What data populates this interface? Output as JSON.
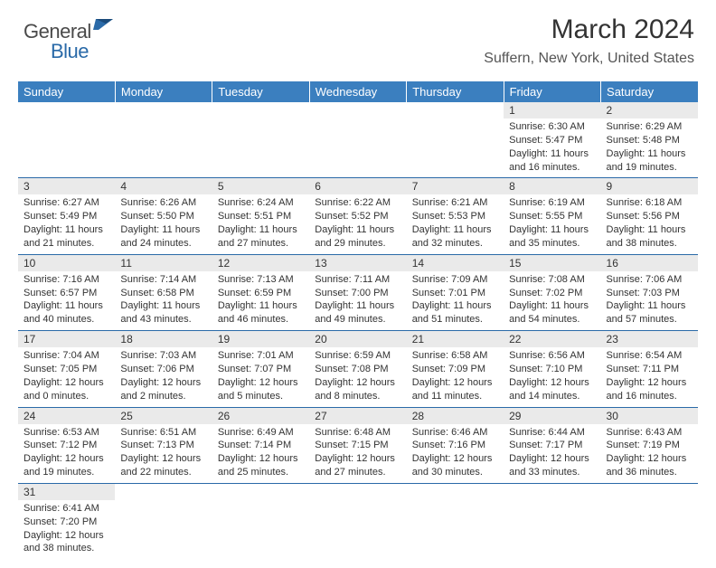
{
  "brand": {
    "part1": "General",
    "part2": "Blue"
  },
  "title": {
    "month": "March 2024",
    "location": "Suffern, New York, United States"
  },
  "colors": {
    "header_bg": "#3b7fbf",
    "header_text": "#ffffff",
    "daynum_bg": "#eaeaea",
    "border": "#2a6aa8",
    "text": "#333333",
    "brand_gray": "#4a4a4a",
    "brand_blue": "#2a6aa8"
  },
  "weekdays": [
    "Sunday",
    "Monday",
    "Tuesday",
    "Wednesday",
    "Thursday",
    "Friday",
    "Saturday"
  ],
  "weeks": [
    [
      null,
      null,
      null,
      null,
      null,
      {
        "n": "1",
        "sr": "Sunrise: 6:30 AM",
        "ss": "Sunset: 5:47 PM",
        "dl1": "Daylight: 11 hours",
        "dl2": "and 16 minutes."
      },
      {
        "n": "2",
        "sr": "Sunrise: 6:29 AM",
        "ss": "Sunset: 5:48 PM",
        "dl1": "Daylight: 11 hours",
        "dl2": "and 19 minutes."
      }
    ],
    [
      {
        "n": "3",
        "sr": "Sunrise: 6:27 AM",
        "ss": "Sunset: 5:49 PM",
        "dl1": "Daylight: 11 hours",
        "dl2": "and 21 minutes."
      },
      {
        "n": "4",
        "sr": "Sunrise: 6:26 AM",
        "ss": "Sunset: 5:50 PM",
        "dl1": "Daylight: 11 hours",
        "dl2": "and 24 minutes."
      },
      {
        "n": "5",
        "sr": "Sunrise: 6:24 AM",
        "ss": "Sunset: 5:51 PM",
        "dl1": "Daylight: 11 hours",
        "dl2": "and 27 minutes."
      },
      {
        "n": "6",
        "sr": "Sunrise: 6:22 AM",
        "ss": "Sunset: 5:52 PM",
        "dl1": "Daylight: 11 hours",
        "dl2": "and 29 minutes."
      },
      {
        "n": "7",
        "sr": "Sunrise: 6:21 AM",
        "ss": "Sunset: 5:53 PM",
        "dl1": "Daylight: 11 hours",
        "dl2": "and 32 minutes."
      },
      {
        "n": "8",
        "sr": "Sunrise: 6:19 AM",
        "ss": "Sunset: 5:55 PM",
        "dl1": "Daylight: 11 hours",
        "dl2": "and 35 minutes."
      },
      {
        "n": "9",
        "sr": "Sunrise: 6:18 AM",
        "ss": "Sunset: 5:56 PM",
        "dl1": "Daylight: 11 hours",
        "dl2": "and 38 minutes."
      }
    ],
    [
      {
        "n": "10",
        "sr": "Sunrise: 7:16 AM",
        "ss": "Sunset: 6:57 PM",
        "dl1": "Daylight: 11 hours",
        "dl2": "and 40 minutes."
      },
      {
        "n": "11",
        "sr": "Sunrise: 7:14 AM",
        "ss": "Sunset: 6:58 PM",
        "dl1": "Daylight: 11 hours",
        "dl2": "and 43 minutes."
      },
      {
        "n": "12",
        "sr": "Sunrise: 7:13 AM",
        "ss": "Sunset: 6:59 PM",
        "dl1": "Daylight: 11 hours",
        "dl2": "and 46 minutes."
      },
      {
        "n": "13",
        "sr": "Sunrise: 7:11 AM",
        "ss": "Sunset: 7:00 PM",
        "dl1": "Daylight: 11 hours",
        "dl2": "and 49 minutes."
      },
      {
        "n": "14",
        "sr": "Sunrise: 7:09 AM",
        "ss": "Sunset: 7:01 PM",
        "dl1": "Daylight: 11 hours",
        "dl2": "and 51 minutes."
      },
      {
        "n": "15",
        "sr": "Sunrise: 7:08 AM",
        "ss": "Sunset: 7:02 PM",
        "dl1": "Daylight: 11 hours",
        "dl2": "and 54 minutes."
      },
      {
        "n": "16",
        "sr": "Sunrise: 7:06 AM",
        "ss": "Sunset: 7:03 PM",
        "dl1": "Daylight: 11 hours",
        "dl2": "and 57 minutes."
      }
    ],
    [
      {
        "n": "17",
        "sr": "Sunrise: 7:04 AM",
        "ss": "Sunset: 7:05 PM",
        "dl1": "Daylight: 12 hours",
        "dl2": "and 0 minutes."
      },
      {
        "n": "18",
        "sr": "Sunrise: 7:03 AM",
        "ss": "Sunset: 7:06 PM",
        "dl1": "Daylight: 12 hours",
        "dl2": "and 2 minutes."
      },
      {
        "n": "19",
        "sr": "Sunrise: 7:01 AM",
        "ss": "Sunset: 7:07 PM",
        "dl1": "Daylight: 12 hours",
        "dl2": "and 5 minutes."
      },
      {
        "n": "20",
        "sr": "Sunrise: 6:59 AM",
        "ss": "Sunset: 7:08 PM",
        "dl1": "Daylight: 12 hours",
        "dl2": "and 8 minutes."
      },
      {
        "n": "21",
        "sr": "Sunrise: 6:58 AM",
        "ss": "Sunset: 7:09 PM",
        "dl1": "Daylight: 12 hours",
        "dl2": "and 11 minutes."
      },
      {
        "n": "22",
        "sr": "Sunrise: 6:56 AM",
        "ss": "Sunset: 7:10 PM",
        "dl1": "Daylight: 12 hours",
        "dl2": "and 14 minutes."
      },
      {
        "n": "23",
        "sr": "Sunrise: 6:54 AM",
        "ss": "Sunset: 7:11 PM",
        "dl1": "Daylight: 12 hours",
        "dl2": "and 16 minutes."
      }
    ],
    [
      {
        "n": "24",
        "sr": "Sunrise: 6:53 AM",
        "ss": "Sunset: 7:12 PM",
        "dl1": "Daylight: 12 hours",
        "dl2": "and 19 minutes."
      },
      {
        "n": "25",
        "sr": "Sunrise: 6:51 AM",
        "ss": "Sunset: 7:13 PM",
        "dl1": "Daylight: 12 hours",
        "dl2": "and 22 minutes."
      },
      {
        "n": "26",
        "sr": "Sunrise: 6:49 AM",
        "ss": "Sunset: 7:14 PM",
        "dl1": "Daylight: 12 hours",
        "dl2": "and 25 minutes."
      },
      {
        "n": "27",
        "sr": "Sunrise: 6:48 AM",
        "ss": "Sunset: 7:15 PM",
        "dl1": "Daylight: 12 hours",
        "dl2": "and 27 minutes."
      },
      {
        "n": "28",
        "sr": "Sunrise: 6:46 AM",
        "ss": "Sunset: 7:16 PM",
        "dl1": "Daylight: 12 hours",
        "dl2": "and 30 minutes."
      },
      {
        "n": "29",
        "sr": "Sunrise: 6:44 AM",
        "ss": "Sunset: 7:17 PM",
        "dl1": "Daylight: 12 hours",
        "dl2": "and 33 minutes."
      },
      {
        "n": "30",
        "sr": "Sunrise: 6:43 AM",
        "ss": "Sunset: 7:19 PM",
        "dl1": "Daylight: 12 hours",
        "dl2": "and 36 minutes."
      }
    ],
    [
      {
        "n": "31",
        "sr": "Sunrise: 6:41 AM",
        "ss": "Sunset: 7:20 PM",
        "dl1": "Daylight: 12 hours",
        "dl2": "and 38 minutes."
      },
      null,
      null,
      null,
      null,
      null,
      null
    ]
  ]
}
